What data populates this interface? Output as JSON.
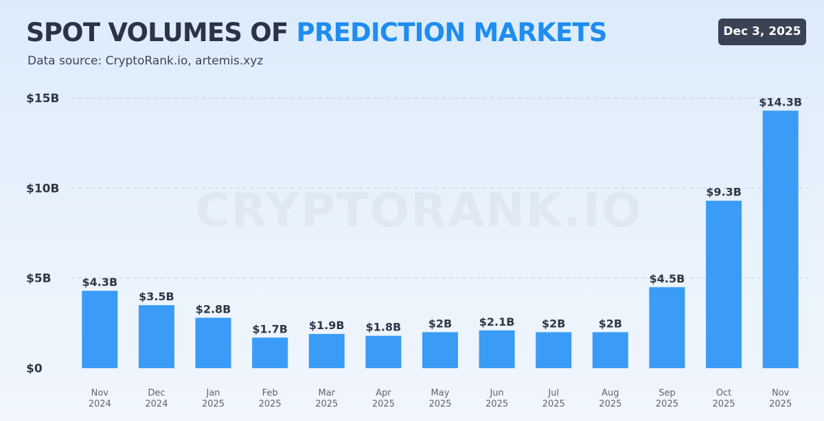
{
  "header": {
    "title_part1": "SPOT VOLUMES OF ",
    "title_part2": "PREDICTION MARKETS",
    "subtitle": "Data source: CryptoRank.io, artemis.xyz",
    "date_badge": "Dec 3, 2025"
  },
  "watermark": "CRYPTORANK.IO",
  "colors": {
    "bar": "#3a9cf6",
    "title": "#2b3447",
    "title_accent": "#1f8df0",
    "badge_bg": "#3a4254"
  },
  "chart_data": {
    "type": "bar",
    "categories": [
      [
        "Nov",
        "2024"
      ],
      [
        "Dec",
        "2024"
      ],
      [
        "Jan",
        "2025"
      ],
      [
        "Feb",
        "2025"
      ],
      [
        "Mar",
        "2025"
      ],
      [
        "Apr",
        "2025"
      ],
      [
        "May",
        "2025"
      ],
      [
        "Jun",
        "2025"
      ],
      [
        "Jul",
        "2025"
      ],
      [
        "Aug",
        "2025"
      ],
      [
        "Sep",
        "2025"
      ],
      [
        "Oct",
        "2025"
      ],
      [
        "Nov",
        "2025"
      ]
    ],
    "values": [
      4.3,
      3.5,
      2.8,
      1.7,
      1.9,
      1.8,
      2,
      2.1,
      2,
      2,
      4.5,
      9.3,
      14.3
    ],
    "data_labels": [
      "$4.3B",
      "$3.5B",
      "$2.8B",
      "$1.7B",
      "$1.9B",
      "$1.8B",
      "$2B",
      "$2.1B",
      "$2B",
      "$2B",
      "$4.5B",
      "$9.3B",
      "$14.3B"
    ],
    "yticks": [
      0,
      5,
      10,
      15
    ],
    "ytick_labels": [
      "$0",
      "$5B",
      "$10B",
      "$15B"
    ],
    "ylim": [
      0,
      15
    ],
    "grid": true
  }
}
